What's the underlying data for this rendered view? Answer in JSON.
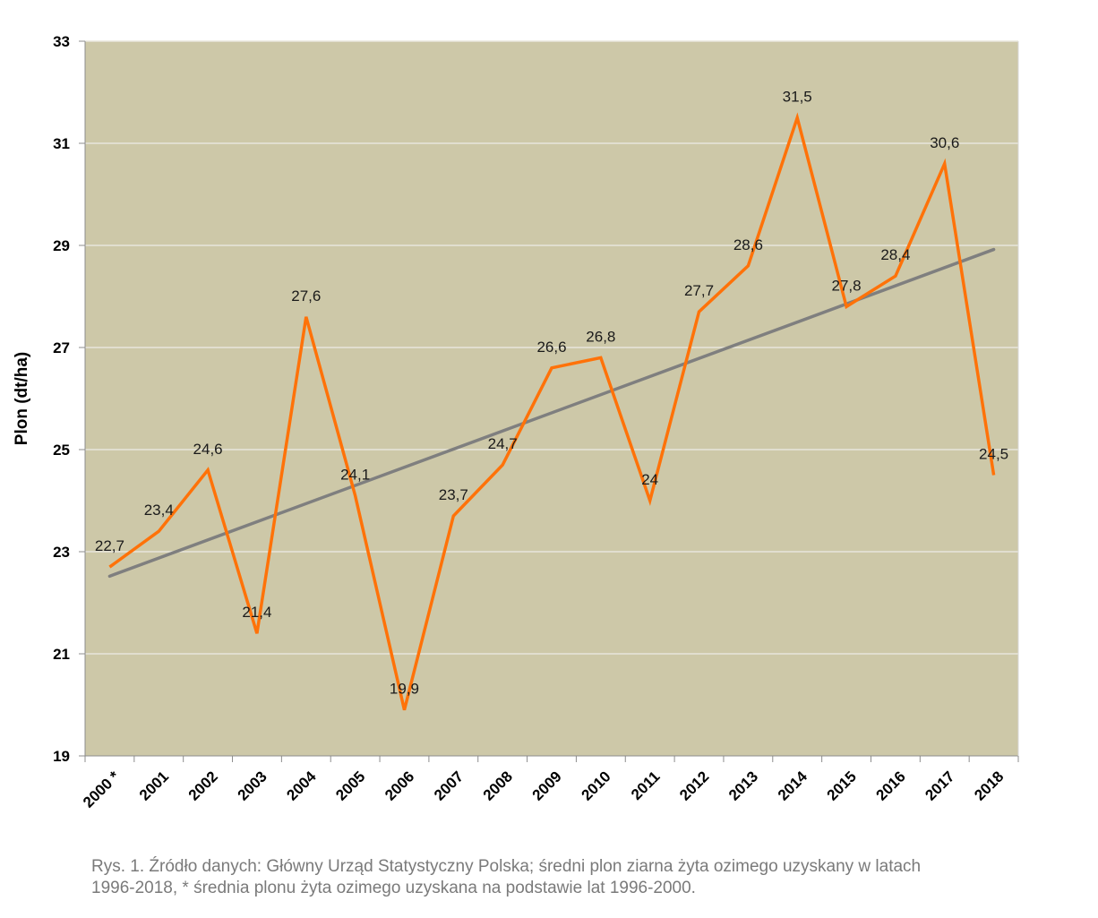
{
  "chart_data": {
    "type": "line",
    "categories": [
      "2000 *",
      "2001",
      "2002",
      "2003",
      "2004",
      "2005",
      "2006",
      "2007",
      "2008",
      "2009",
      "2010",
      "2011",
      "2012",
      "2013",
      "2014",
      "2015",
      "2016",
      "2017",
      "2018"
    ],
    "series": [
      {
        "values": [
          22.7,
          23.4,
          24.6,
          21.4,
          27.6,
          24.1,
          19.9,
          23.7,
          24.7,
          26.6,
          26.8,
          24.0,
          27.7,
          28.6,
          31.5,
          27.8,
          28.4,
          30.6,
          24.5
        ],
        "labels": [
          "22,7",
          "23,4",
          "24,6",
          "21,4",
          "27,6",
          "24,1",
          "19,9",
          "23,7",
          "24,7",
          "26,6",
          "26,8",
          "24",
          "27,7",
          "28,6",
          "31,5",
          "27,8",
          "28,4",
          "30,6",
          "24,5"
        ],
        "color": "#ff7209"
      }
    ],
    "trendline": {
      "type": "linear",
      "start": 22.52,
      "end": 28.92,
      "color": "#7f7f7f"
    },
    "ylabel": "Plon (dt/ha)",
    "ylim": [
      19,
      33
    ],
    "yticks": [
      19,
      21,
      23,
      25,
      27,
      29,
      31,
      33
    ],
    "grid": true,
    "legend": "none",
    "plot_background": "#cdc8a8",
    "gridline_color": "#e8e6dc"
  },
  "caption": {
    "line1": "Rys. 1.  Źródło danych: Główny Urząd  Statystyczny Polska; średni plon ziarna żyta ozimego uzyskany w latach",
    "line2": "1996-2018, * średnia plonu żyta ozimego uzyskana na podstawie lat 1996-2000."
  }
}
